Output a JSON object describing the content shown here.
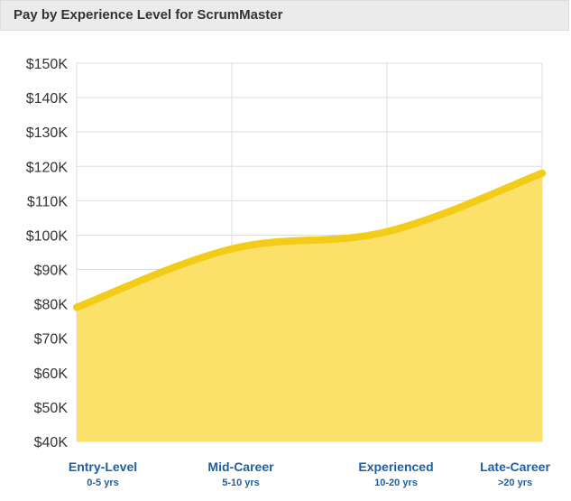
{
  "header": {
    "title": "Pay by Experience Level for ScrumMaster"
  },
  "colors": {
    "line": "#f2cc16",
    "area": "#fbe16a",
    "grid": "#dddddd",
    "category_text": "#1d5fa3"
  },
  "chart_data": {
    "type": "area",
    "title": "Pay by Experience Level for ScrumMaster",
    "xlabel": "",
    "ylabel": "",
    "categories": [
      "Entry-Level",
      "Mid-Career",
      "Experienced",
      "Late-Career"
    ],
    "category_subtitles": [
      "0-5 yrs",
      "5-10 yrs",
      "10-20 yrs",
      ">20 yrs"
    ],
    "series": [
      {
        "values": [
          79000,
          96000,
          101000,
          118000
        ]
      }
    ],
    "yticks": [
      "$40K",
      "$50K",
      "$60K",
      "$70K",
      "$80K",
      "$90K",
      "$100K",
      "$110K",
      "$120K",
      "$130K",
      "$140K",
      "$150K"
    ],
    "ylim": [
      40000,
      150000
    ],
    "grid": true,
    "legend": "none"
  }
}
